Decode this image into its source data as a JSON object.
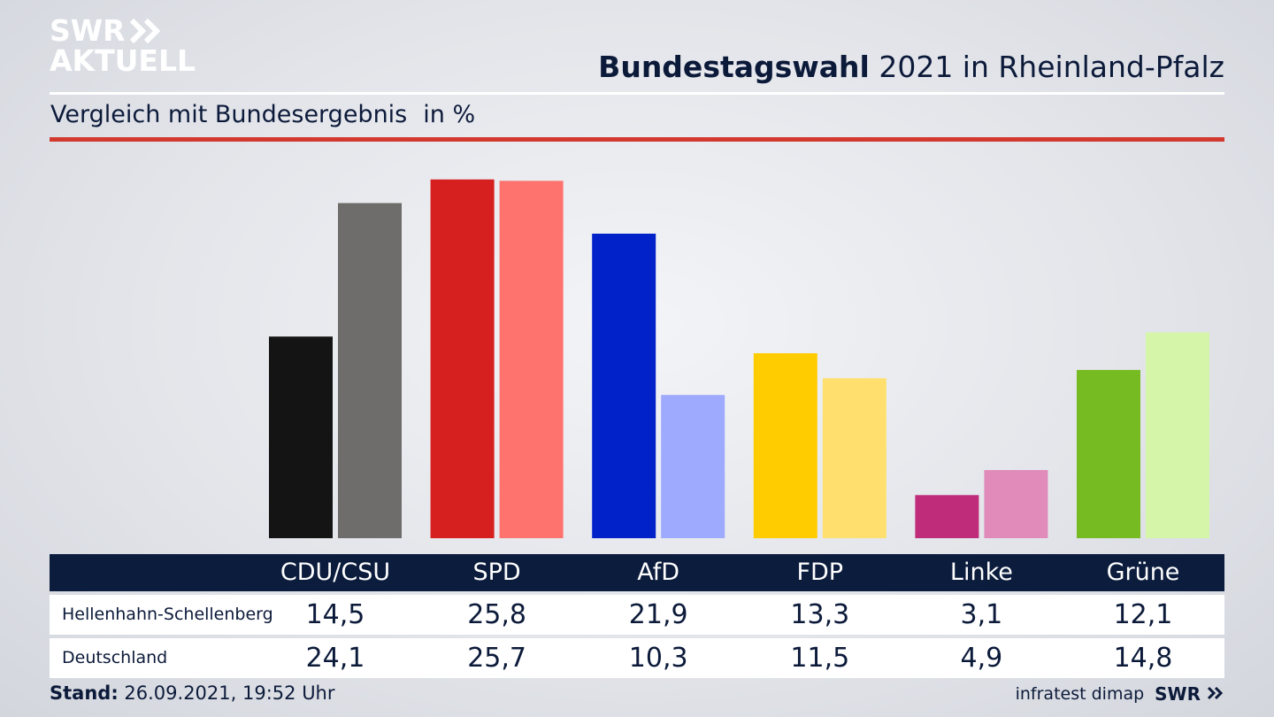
{
  "brand": {
    "logo_line1": "SWR",
    "logo_line2": "AKTUELL",
    "footer_logo": "SWR"
  },
  "title": {
    "bold": "Bundestagswahl",
    "rest": "2021 in Rheinland-Pfalz"
  },
  "subtitle": {
    "text": "Vergleich mit Bundesergebnis",
    "unit": "in %"
  },
  "table": {
    "row_labels": [
      "Hellenhahn-Schellenberg",
      "Deutschland"
    ]
  },
  "footer": {
    "stand_label": "Stand:",
    "stand_value": "26.09.2021, 19:52 Uhr",
    "source": "infratest dimap"
  },
  "chart_data": {
    "type": "bar",
    "categories": [
      "CDU/CSU",
      "SPD",
      "AfD",
      "FDP",
      "Linke",
      "Grüne"
    ],
    "series": [
      {
        "name": "Hellenhahn-Schellenberg",
        "values": [
          14.5,
          25.8,
          21.9,
          13.3,
          3.1,
          12.1
        ],
        "colors": [
          "#141414",
          "#d61f1f",
          "#0022c8",
          "#ffcc00",
          "#bf2c79",
          "#77bb22"
        ]
      },
      {
        "name": "Deutschland",
        "values": [
          24.1,
          25.7,
          10.3,
          11.5,
          4.9,
          14.8
        ],
        "colors": [
          "#6e6d6b",
          "#ff736e",
          "#9eaafe",
          "#ffe06e",
          "#e08bb9",
          "#d5f5a8"
        ]
      }
    ],
    "ylim": [
      0,
      26.8
    ],
    "grid": false,
    "legend": "table-below"
  }
}
